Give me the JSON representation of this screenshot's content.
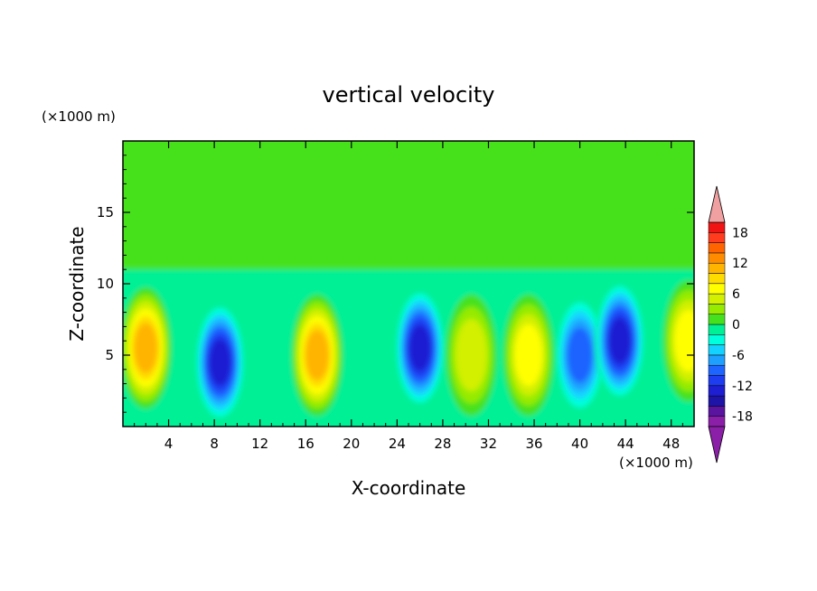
{
  "chart_data": {
    "type": "heatmap",
    "title": "vertical velocity",
    "xlabel": "X-coordinate",
    "ylabel": "Z-coordinate",
    "x_unit": "(×1000 m)",
    "y_unit": "(×1000 m)",
    "xlim": [
      0,
      50
    ],
    "ylim": [
      0,
      20
    ],
    "x_ticks": [
      4,
      8,
      12,
      16,
      20,
      24,
      28,
      32,
      36,
      40,
      44,
      48
    ],
    "y_ticks": [
      5,
      10,
      15
    ],
    "colorbar": {
      "levels": [
        -20,
        -18,
        -16,
        -14,
        -12,
        -10,
        -8,
        -6,
        -4,
        -2,
        0,
        2,
        4,
        6,
        8,
        10,
        12,
        14,
        16,
        18,
        20
      ],
      "tick_labels": [
        "18",
        "12",
        "6",
        "0",
        "-6",
        "-12",
        "-18"
      ],
      "tick_values": [
        18,
        12,
        6,
        0,
        -6,
        -12,
        -18
      ],
      "colors": [
        "#8c1fa8",
        "#5a14a0",
        "#1e14a8",
        "#1e1ed2",
        "#1e3cf0",
        "#1e64ff",
        "#1ea0ff",
        "#14d2ff",
        "#00ffdc",
        "#00f096",
        "#46e11e",
        "#96eb00",
        "#d2f000",
        "#ffff00",
        "#ffdc00",
        "#ffb400",
        "#ff8c00",
        "#ff6400",
        "#ff3c1e",
        "#f01414"
      ],
      "over_color": "#f0a0a0",
      "under_color": "#8c1fa8"
    },
    "cells": [
      {
        "x": 2.0,
        "z": 5.5,
        "w": 12
      },
      {
        "x": 8.5,
        "z": 4.5,
        "w": -13
      },
      {
        "x": 17.0,
        "z": 5.0,
        "w": 12
      },
      {
        "x": 26.0,
        "z": 5.5,
        "w": -13
      },
      {
        "x": 30.5,
        "z": 5.0,
        "w": 6
      },
      {
        "x": 35.5,
        "z": 5.0,
        "w": 7
      },
      {
        "x": 40.0,
        "z": 5.0,
        "w": -10
      },
      {
        "x": 43.5,
        "z": 6.0,
        "w": -14
      },
      {
        "x": 49.5,
        "z": 6.0,
        "w": 7
      }
    ]
  }
}
